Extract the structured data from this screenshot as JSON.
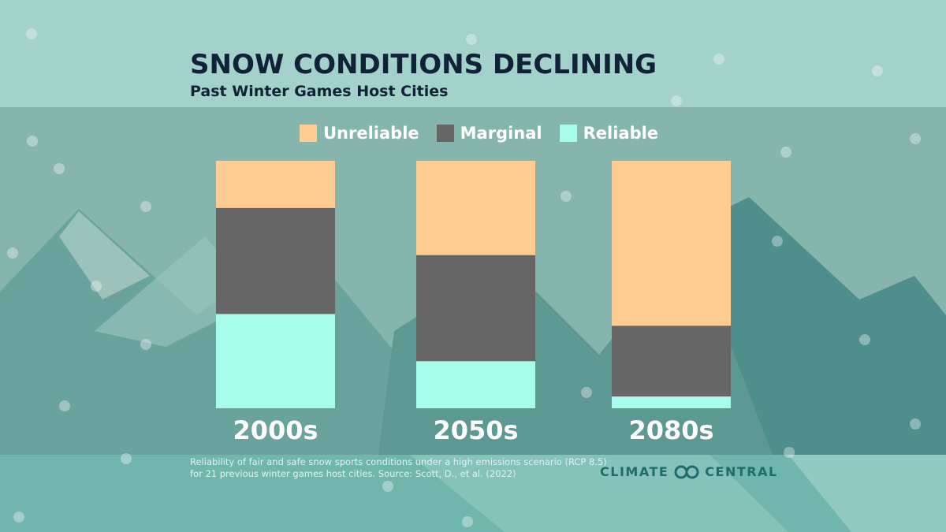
{
  "title": "SNOW CONDITIONS DECLINING",
  "subtitle": "Past Winter Games Host Cities",
  "footnote_lines": [
    "Reliability of fair and safe snow sports conditions under a high emissions scenario (RCP 8.5)",
    "for 21 previous winter games host cities. Source: Scott, D., et al. (2022)"
  ],
  "logo": {
    "left": "CLIMATE",
    "right": "CENTRAL"
  },
  "chart_data": {
    "type": "bar",
    "stacked": true,
    "title": "SNOW CONDITIONS DECLINING",
    "subtitle": "Past Winter Games Host Cities",
    "categories": [
      "2000s",
      "2050s",
      "2080s"
    ],
    "series": [
      {
        "name": "Unreliable",
        "color": "#FFCC94",
        "values": [
          4,
          8,
          14
        ]
      },
      {
        "name": "Marginal",
        "color": "#666666",
        "values": [
          9,
          9,
          6
        ]
      },
      {
        "name": "Reliable",
        "color": "#A8FCEC",
        "values": [
          8,
          4,
          1
        ]
      }
    ],
    "stack_order_bottom_to_top": [
      "Reliable",
      "Marginal",
      "Unreliable"
    ],
    "ylim": [
      0,
      21
    ],
    "grid": false,
    "legend_position": "top-center"
  }
}
